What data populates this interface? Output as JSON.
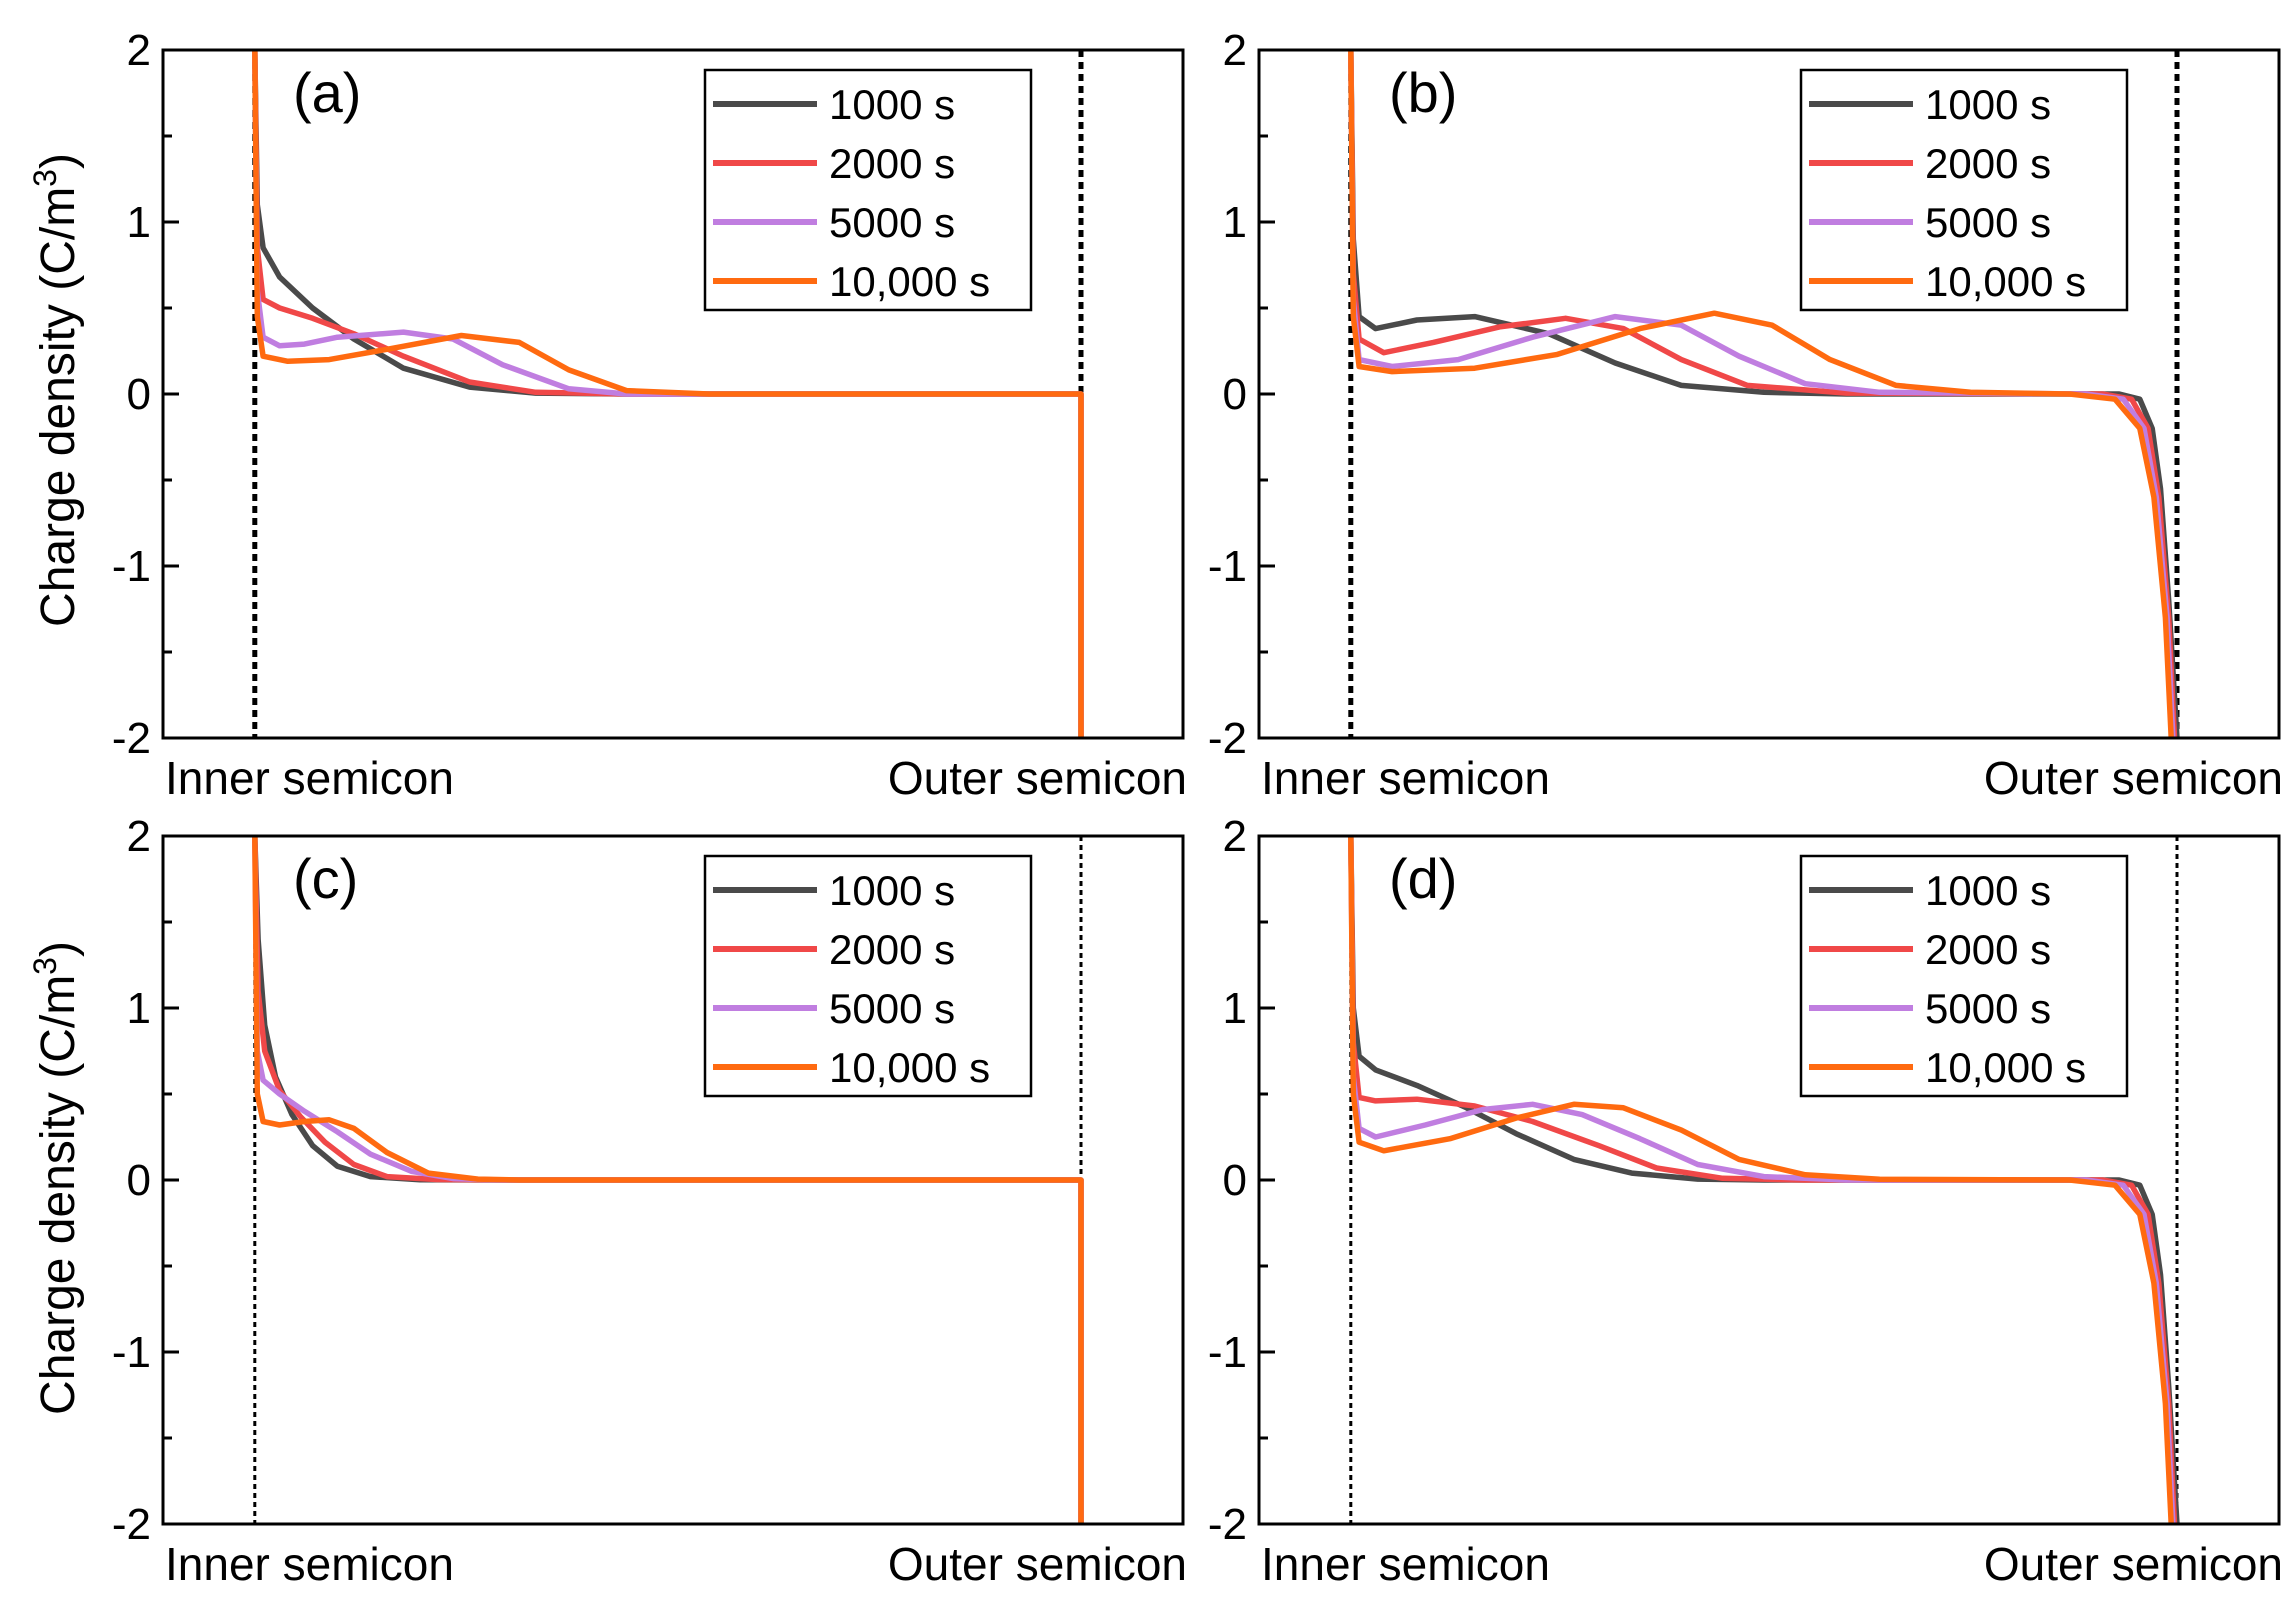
{
  "figure": {
    "ylabel_main": "Charge density (C/m",
    "ylabel_exp": "3",
    "ylabel_close": ")"
  },
  "legend": [
    "1000 s",
    "2000 s",
    "5000 s",
    "10,000 s"
  ],
  "colors": {
    "1000 s": "#4a4a4a",
    "2000 s": "#f04848",
    "5000 s": "#c07ee0",
    "10,000 s": "#ff6a10",
    "axis": "#000000"
  },
  "chart_data": [
    {
      "type": "line",
      "panel": "(a)",
      "xlabels": [
        "Inner semicon",
        "Outer semicon"
      ],
      "xlim": [
        0,
        1
      ],
      "ylim": [
        -2,
        2
      ],
      "yticks": [
        "2",
        "1",
        "0",
        "-1",
        "-2"
      ],
      "boundary_style": "bold-dotted",
      "outer_electrode_curve": false,
      "series": [
        {
          "name": "1000 s",
          "pts": [
            [
              0,
              2.0
            ],
            [
              0.003,
              1.1
            ],
            [
              0.01,
              0.85
            ],
            [
              0.03,
              0.68
            ],
            [
              0.07,
              0.5
            ],
            [
              0.12,
              0.32
            ],
            [
              0.18,
              0.15
            ],
            [
              0.26,
              0.04
            ],
            [
              0.34,
              0.005
            ],
            [
              0.45,
              0
            ],
            [
              1.0,
              0
            ],
            [
              1.0,
              -2.0
            ]
          ]
        },
        {
          "name": "2000 s",
          "pts": [
            [
              0,
              2.0
            ],
            [
              0.003,
              0.85
            ],
            [
              0.01,
              0.55
            ],
            [
              0.03,
              0.5
            ],
            [
              0.07,
              0.44
            ],
            [
              0.12,
              0.35
            ],
            [
              0.18,
              0.22
            ],
            [
              0.26,
              0.07
            ],
            [
              0.34,
              0.01
            ],
            [
              0.45,
              0
            ],
            [
              1.0,
              0
            ],
            [
              1.0,
              -2.0
            ]
          ]
        },
        {
          "name": "5000 s",
          "pts": [
            [
              0,
              2.0
            ],
            [
              0.003,
              0.6
            ],
            [
              0.01,
              0.33
            ],
            [
              0.03,
              0.28
            ],
            [
              0.06,
              0.29
            ],
            [
              0.1,
              0.33
            ],
            [
              0.18,
              0.36
            ],
            [
              0.24,
              0.32
            ],
            [
              0.3,
              0.17
            ],
            [
              0.38,
              0.03
            ],
            [
              0.45,
              0
            ],
            [
              1.0,
              0
            ],
            [
              1.0,
              -2.0
            ]
          ]
        },
        {
          "name": "10,000 s",
          "pts": [
            [
              0,
              2.0
            ],
            [
              0.003,
              0.45
            ],
            [
              0.01,
              0.22
            ],
            [
              0.04,
              0.19
            ],
            [
              0.09,
              0.2
            ],
            [
              0.16,
              0.26
            ],
            [
              0.25,
              0.34
            ],
            [
              0.32,
              0.3
            ],
            [
              0.38,
              0.14
            ],
            [
              0.45,
              0.02
            ],
            [
              0.55,
              0
            ],
            [
              1.0,
              0
            ],
            [
              1.0,
              -2.0
            ]
          ]
        }
      ]
    },
    {
      "type": "line",
      "panel": "(b)",
      "xlabels": [
        "Inner semicon",
        "Outer semicon"
      ],
      "xlim": [
        0,
        1
      ],
      "ylim": [
        -2,
        2
      ],
      "yticks": [
        "2",
        "1",
        "0",
        "-1",
        "-2"
      ],
      "boundary_style": "bold-dotted",
      "outer_electrode_curve": true,
      "series": [
        {
          "name": "1000 s",
          "pts": [
            [
              0,
              2.0
            ],
            [
              0.003,
              0.9
            ],
            [
              0.01,
              0.45
            ],
            [
              0.03,
              0.38
            ],
            [
              0.08,
              0.43
            ],
            [
              0.15,
              0.45
            ],
            [
              0.24,
              0.35
            ],
            [
              0.32,
              0.18
            ],
            [
              0.4,
              0.05
            ],
            [
              0.5,
              0.01
            ],
            [
              0.6,
              0
            ],
            [
              0.93,
              0
            ],
            [
              0.955,
              -0.03
            ],
            [
              0.97,
              -0.2
            ],
            [
              0.98,
              -0.55
            ],
            [
              0.99,
              -1.2
            ],
            [
              1.0,
              -2.0
            ]
          ]
        },
        {
          "name": "2000 s",
          "pts": [
            [
              0,
              2.0
            ],
            [
              0.003,
              0.7
            ],
            [
              0.01,
              0.32
            ],
            [
              0.04,
              0.24
            ],
            [
              0.1,
              0.3
            ],
            [
              0.18,
              0.39
            ],
            [
              0.26,
              0.44
            ],
            [
              0.33,
              0.38
            ],
            [
              0.4,
              0.2
            ],
            [
              0.48,
              0.05
            ],
            [
              0.6,
              0.005
            ],
            [
              0.91,
              0
            ],
            [
              0.945,
              -0.03
            ],
            [
              0.965,
              -0.2
            ],
            [
              0.978,
              -0.6
            ],
            [
              0.99,
              -1.3
            ],
            [
              0.997,
              -2.0
            ]
          ]
        },
        {
          "name": "5000 s",
          "pts": [
            [
              0,
              2.0
            ],
            [
              0.003,
              0.55
            ],
            [
              0.01,
              0.2
            ],
            [
              0.05,
              0.16
            ],
            [
              0.13,
              0.2
            ],
            [
              0.22,
              0.33
            ],
            [
              0.32,
              0.45
            ],
            [
              0.4,
              0.4
            ],
            [
              0.47,
              0.22
            ],
            [
              0.55,
              0.06
            ],
            [
              0.64,
              0.01
            ],
            [
              0.89,
              0
            ],
            [
              0.935,
              -0.03
            ],
            [
              0.96,
              -0.2
            ],
            [
              0.975,
              -0.6
            ],
            [
              0.988,
              -1.3
            ],
            [
              0.995,
              -2.0
            ]
          ]
        },
        {
          "name": "10,000 s",
          "pts": [
            [
              0,
              2.0
            ],
            [
              0.003,
              0.45
            ],
            [
              0.01,
              0.16
            ],
            [
              0.05,
              0.13
            ],
            [
              0.15,
              0.15
            ],
            [
              0.25,
              0.23
            ],
            [
              0.35,
              0.38
            ],
            [
              0.44,
              0.47
            ],
            [
              0.51,
              0.4
            ],
            [
              0.58,
              0.2
            ],
            [
              0.66,
              0.05
            ],
            [
              0.75,
              0.01
            ],
            [
              0.87,
              0
            ],
            [
              0.925,
              -0.03
            ],
            [
              0.955,
              -0.2
            ],
            [
              0.972,
              -0.6
            ],
            [
              0.986,
              -1.3
            ],
            [
              0.993,
              -2.0
            ]
          ]
        }
      ]
    },
    {
      "type": "line",
      "panel": "(c)",
      "xlabels": [
        "Inner semicon",
        "Outer semicon"
      ],
      "xlim": [
        0,
        1
      ],
      "ylim": [
        -2,
        2
      ],
      "yticks": [
        "2",
        "1",
        "0",
        "-1",
        "-2"
      ],
      "boundary_style": "thin-dotted",
      "outer_electrode_curve": false,
      "series": [
        {
          "name": "1000 s",
          "pts": [
            [
              0,
              2.0
            ],
            [
              0.004,
              1.4
            ],
            [
              0.012,
              0.9
            ],
            [
              0.025,
              0.6
            ],
            [
              0.045,
              0.38
            ],
            [
              0.07,
              0.2
            ],
            [
              0.1,
              0.08
            ],
            [
              0.14,
              0.02
            ],
            [
              0.2,
              0.002
            ],
            [
              0.3,
              0
            ],
            [
              1.0,
              0
            ],
            [
              1.0,
              -2.0
            ]
          ]
        },
        {
          "name": "2000 s",
          "pts": [
            [
              0,
              2.0
            ],
            [
              0.004,
              1.1
            ],
            [
              0.012,
              0.75
            ],
            [
              0.03,
              0.52
            ],
            [
              0.055,
              0.37
            ],
            [
              0.085,
              0.22
            ],
            [
              0.12,
              0.09
            ],
            [
              0.16,
              0.02
            ],
            [
              0.22,
              0.003
            ],
            [
              0.3,
              0
            ],
            [
              1.0,
              0
            ],
            [
              1.0,
              -2.0
            ]
          ]
        },
        {
          "name": "5000 s",
          "pts": [
            [
              0,
              2.0
            ],
            [
              0.003,
              0.75
            ],
            [
              0.01,
              0.58
            ],
            [
              0.03,
              0.5
            ],
            [
              0.06,
              0.4
            ],
            [
              0.1,
              0.28
            ],
            [
              0.14,
              0.15
            ],
            [
              0.19,
              0.05
            ],
            [
              0.24,
              0.008
            ],
            [
              0.3,
              0
            ],
            [
              1.0,
              0
            ],
            [
              1.0,
              -2.0
            ]
          ]
        },
        {
          "name": "10,000 s",
          "pts": [
            [
              0,
              2.0
            ],
            [
              0.003,
              0.5
            ],
            [
              0.01,
              0.34
            ],
            [
              0.03,
              0.32
            ],
            [
              0.06,
              0.34
            ],
            [
              0.09,
              0.35
            ],
            [
              0.12,
              0.3
            ],
            [
              0.16,
              0.16
            ],
            [
              0.21,
              0.04
            ],
            [
              0.27,
              0.005
            ],
            [
              0.32,
              0
            ],
            [
              1.0,
              0
            ],
            [
              1.0,
              -2.0
            ]
          ]
        }
      ]
    },
    {
      "type": "line",
      "panel": "(d)",
      "xlabels": [
        "Inner semicon",
        "Outer semicon"
      ],
      "xlim": [
        0,
        1
      ],
      "ylim": [
        -2,
        2
      ],
      "yticks": [
        "2",
        "1",
        "0",
        "-1",
        "-2"
      ],
      "boundary_style": "thin-dotted",
      "outer_electrode_curve": true,
      "series": [
        {
          "name": "1000 s",
          "pts": [
            [
              0,
              2.0
            ],
            [
              0.003,
              1.0
            ],
            [
              0.01,
              0.72
            ],
            [
              0.03,
              0.64
            ],
            [
              0.08,
              0.55
            ],
            [
              0.14,
              0.42
            ],
            [
              0.2,
              0.27
            ],
            [
              0.27,
              0.12
            ],
            [
              0.34,
              0.04
            ],
            [
              0.42,
              0.005
            ],
            [
              0.5,
              0
            ],
            [
              0.93,
              0
            ],
            [
              0.955,
              -0.03
            ],
            [
              0.97,
              -0.2
            ],
            [
              0.98,
              -0.55
            ],
            [
              0.99,
              -1.2
            ],
            [
              1.0,
              -2.0
            ]
          ]
        },
        {
          "name": "2000 s",
          "pts": [
            [
              0,
              2.0
            ],
            [
              0.003,
              0.8
            ],
            [
              0.01,
              0.48
            ],
            [
              0.03,
              0.46
            ],
            [
              0.08,
              0.47
            ],
            [
              0.15,
              0.43
            ],
            [
              0.22,
              0.34
            ],
            [
              0.3,
              0.2
            ],
            [
              0.37,
              0.07
            ],
            [
              0.45,
              0.01
            ],
            [
              0.55,
              0
            ],
            [
              0.91,
              0
            ],
            [
              0.945,
              -0.03
            ],
            [
              0.965,
              -0.2
            ],
            [
              0.978,
              -0.6
            ],
            [
              0.99,
              -1.3
            ],
            [
              0.997,
              -2.0
            ]
          ]
        },
        {
          "name": "5000 s",
          "pts": [
            [
              0,
              2.0
            ],
            [
              0.003,
              0.6
            ],
            [
              0.01,
              0.3
            ],
            [
              0.03,
              0.25
            ],
            [
              0.09,
              0.32
            ],
            [
              0.16,
              0.41
            ],
            [
              0.22,
              0.44
            ],
            [
              0.28,
              0.38
            ],
            [
              0.35,
              0.24
            ],
            [
              0.42,
              0.09
            ],
            [
              0.5,
              0.02
            ],
            [
              0.6,
              0
            ],
            [
              0.89,
              0
            ],
            [
              0.935,
              -0.03
            ],
            [
              0.96,
              -0.2
            ],
            [
              0.975,
              -0.6
            ],
            [
              0.988,
              -1.3
            ],
            [
              0.995,
              -2.0
            ]
          ]
        },
        {
          "name": "10,000 s",
          "pts": [
            [
              0,
              2.0
            ],
            [
              0.003,
              0.5
            ],
            [
              0.01,
              0.22
            ],
            [
              0.04,
              0.17
            ],
            [
              0.12,
              0.24
            ],
            [
              0.2,
              0.36
            ],
            [
              0.27,
              0.44
            ],
            [
              0.33,
              0.42
            ],
            [
              0.4,
              0.29
            ],
            [
              0.47,
              0.12
            ],
            [
              0.55,
              0.03
            ],
            [
              0.64,
              0.004
            ],
            [
              0.87,
              0
            ],
            [
              0.925,
              -0.03
            ],
            [
              0.955,
              -0.2
            ],
            [
              0.972,
              -0.6
            ],
            [
              0.986,
              -1.3
            ],
            [
              0.993,
              -2.0
            ]
          ]
        }
      ]
    }
  ]
}
